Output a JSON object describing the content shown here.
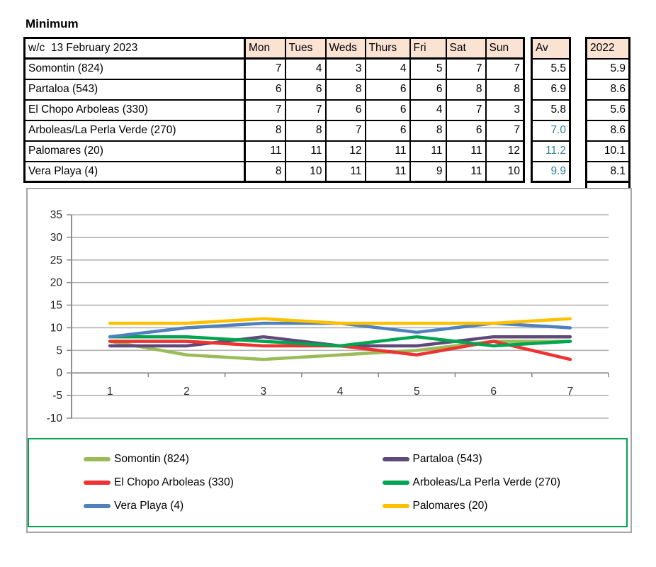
{
  "title": "Minimum",
  "table": {
    "week_label": "w/c  13 February 2023",
    "day_headers": [
      "Mon",
      "Tues",
      "Weds",
      "Thurs",
      "Fri",
      "Sat",
      "Sun"
    ],
    "av_header": "Av",
    "prev_year_header": "2022",
    "rows": [
      {
        "label": "Somontin (824)",
        "values": [
          7,
          4,
          3,
          4,
          5,
          7,
          7
        ],
        "av": "5.5",
        "av_teal": false,
        "prev": "5.9"
      },
      {
        "label": "Partaloa (543)",
        "values": [
          6,
          6,
          8,
          6,
          6,
          8,
          8
        ],
        "av": "6.9",
        "av_teal": false,
        "prev": "8.6"
      },
      {
        "label": "El Chopo Arboleas (330)",
        "values": [
          7,
          7,
          6,
          6,
          4,
          7,
          3
        ],
        "av": "5.8",
        "av_teal": false,
        "prev": "5.6"
      },
      {
        "label": "Arboleas/La Perla Verde (270)",
        "values": [
          8,
          8,
          7,
          6,
          8,
          6,
          7
        ],
        "av": "7.0",
        "av_teal": true,
        "prev": "8.6"
      },
      {
        "label": "Palomares (20)",
        "values": [
          11,
          11,
          12,
          11,
          11,
          11,
          12
        ],
        "av": "11.2",
        "av_teal": true,
        "prev": "10.1"
      },
      {
        "label": "Vera Playa (4)",
        "values": [
          8,
          10,
          11,
          11,
          9,
          11,
          10
        ],
        "av": "9.9",
        "av_teal": true,
        "prev": "8.1"
      }
    ]
  },
  "chart_data": {
    "type": "line",
    "x": [
      1,
      2,
      3,
      4,
      5,
      6,
      7
    ],
    "xtick_labels": [
      "1",
      "2",
      "3",
      "4",
      "5",
      "6",
      "7"
    ],
    "ylim": [
      -10,
      35
    ],
    "ytick_step": 5,
    "ytick_labels": [
      "35",
      "30",
      "25",
      "20",
      "15",
      "10",
      "5",
      "0",
      "-5",
      "-10"
    ],
    "grid": true,
    "legend_position": "bottom",
    "series": [
      {
        "name": "Somontin (824)",
        "color": "#9BBB59",
        "values": [
          7,
          4,
          3,
          4,
          5,
          7,
          7
        ]
      },
      {
        "name": "Partaloa (543)",
        "color": "#5F497A",
        "values": [
          6,
          6,
          8,
          6,
          6,
          8,
          8
        ]
      },
      {
        "name": "El Chopo Arboleas (330)",
        "color": "#EE3333",
        "values": [
          7,
          7,
          6,
          6,
          4,
          7,
          3
        ]
      },
      {
        "name": "Arboleas/La Perla Verde (270)",
        "color": "#00A550",
        "values": [
          8,
          8,
          7,
          6,
          8,
          6,
          7
        ]
      },
      {
        "name": "Vera Playa (4)",
        "color": "#4F81BD",
        "values": [
          8,
          10,
          11,
          11,
          9,
          11,
          10
        ]
      },
      {
        "name": "Palomares (20)",
        "color": "#FFC000",
        "values": [
          11,
          11,
          12,
          11,
          11,
          11,
          12
        ]
      }
    ]
  },
  "colors": {
    "header_fill": "#FBE3D4",
    "teal_text": "#31849B",
    "table_border": "#000000",
    "chart_border": "#A6A6A6",
    "legend_border": "#00A550",
    "gridline": "#B3B3B3",
    "axis": "#8C8C8C",
    "tick_label": "#262626"
  }
}
